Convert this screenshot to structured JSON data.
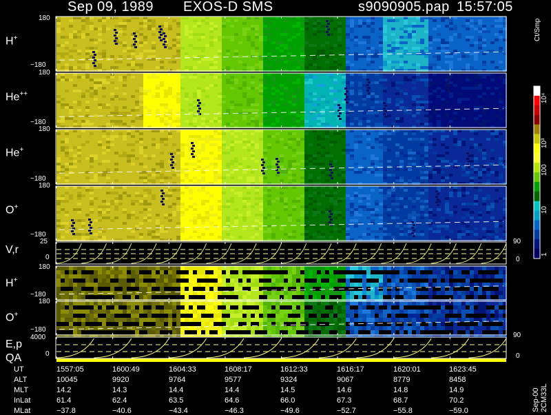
{
  "header": {
    "date": "Sep 09, 1989",
    "mission": "EXOS-D SMS",
    "file": "s9090905.pap",
    "time": "15:57:05"
  },
  "colorbar": {
    "unit": "Ct/Smp",
    "ticks": [
      "10⁴",
      "10³",
      "100",
      "10",
      "1"
    ],
    "colors": [
      "#ffffff",
      "#ff0000",
      "#c80000",
      "#8c0000",
      "#a08000",
      "#c8c800",
      "#ffff00",
      "#ffff28",
      "#b4e600",
      "#64c800",
      "#00a000",
      "#006400",
      "#00c8c8",
      "#00a0c8",
      "#0064c8",
      "#003ca0",
      "#00147a",
      "#000064"
    ]
  },
  "panels": {
    "hplus": {
      "label": "H",
      "sup": "+",
      "ymax": "180",
      "ymin": "−180"
    },
    "hepp": {
      "label": "He",
      "sup": "++",
      "ymax": "180",
      "ymin": "−180"
    },
    "heplus": {
      "label": "He",
      "sup": "+",
      "ymax": "180",
      "ymin": "−180"
    },
    "oplus": {
      "label": "O",
      "sup": "+",
      "ymax": "180",
      "ymin": "−180"
    },
    "vr": {
      "label": "V,r",
      "ymax": "25",
      "ymin": "0",
      "rmax": "90",
      "rmin": "0"
    },
    "hplus2": {
      "label": "H",
      "sup": "+",
      "ymax": "180",
      "ymin": "−180"
    },
    "oplus2": {
      "label": "O",
      "sup": "+",
      "ymax": "180",
      "ymin": "−180"
    },
    "ep": {
      "label": "E,p",
      "ymax": "4000",
      "ymin": "0",
      "rmax": "90",
      "rmin": "0"
    },
    "qa": {
      "label": "QA"
    }
  },
  "footer": {
    "rows": [
      {
        "name": "UT",
        "values": [
          "1557:05",
          "1600:49",
          "1604:33",
          "1608:17",
          "1612:33",
          "1616:17",
          "1620:01",
          "1623:45"
        ]
      },
      {
        "name": "ALT",
        "values": [
          "10045",
          "9920",
          "9764",
          "9577",
          "9324",
          "9067",
          "8779",
          "8458"
        ]
      },
      {
        "name": "MLT",
        "values": [
          "14.2",
          "14.3",
          "14.4",
          "14.4",
          "14.5",
          "14.6",
          "14.8",
          "14.9"
        ]
      },
      {
        "name": "InLat",
        "values": [
          "61.4",
          "62.4",
          "63.5",
          "64.6",
          "66.0",
          "67.3",
          "68.7",
          "70.2"
        ]
      },
      {
        "name": "MLat",
        "values": [
          "−37.8",
          "−40.6",
          "−43.4",
          "−46.3",
          "−49.6",
          "−52.7",
          "−55.8",
          "−59.0"
        ]
      }
    ]
  },
  "stamp": "Sep-00 2CM33L",
  "chart_data": {
    "type": "heatmap",
    "title": "Sep 09, 1989   EXOS-D SMS",
    "xlabel": "UT",
    "x": [
      "1557:05",
      "1600:49",
      "1604:33",
      "1608:17",
      "1612:33",
      "1616:17",
      "1620:01",
      "1623:45"
    ],
    "series": [
      {
        "name": "H+",
        "ylim": [
          -180,
          180
        ],
        "zone_levels": [
          6,
          6,
          6,
          8,
          9,
          10,
          11,
          14,
          13,
          14
        ]
      },
      {
        "name": "He++",
        "ylim": [
          -180,
          180
        ],
        "zone_levels": [
          6,
          6,
          7,
          8,
          9,
          10,
          12,
          15,
          16,
          17
        ]
      },
      {
        "name": "He+",
        "ylim": [
          -180,
          180
        ],
        "zone_levels": [
          6,
          6,
          6,
          7,
          8,
          9,
          11,
          14,
          15,
          16
        ]
      },
      {
        "name": "O+",
        "ylim": [
          -180,
          180
        ],
        "zone_levels": [
          6,
          6,
          6,
          7,
          8,
          9,
          11,
          14,
          15,
          16
        ]
      },
      {
        "name": "V,r",
        "ylim": [
          0,
          25
        ],
        "right_ylim": [
          0,
          90
        ]
      },
      {
        "name": "H+",
        "ylim": [
          -180,
          180
        ],
        "zone_levels": [
          5,
          5,
          5,
          7,
          8,
          9,
          10,
          13,
          14,
          16
        ]
      },
      {
        "name": "O+",
        "ylim": [
          -180,
          180
        ],
        "zone_levels": [
          5,
          5,
          5,
          7,
          8,
          9,
          11,
          14,
          15,
          16
        ]
      },
      {
        "name": "E,p",
        "ylim": [
          0,
          4000
        ],
        "right_ylim": [
          0,
          90
        ]
      }
    ]
  }
}
